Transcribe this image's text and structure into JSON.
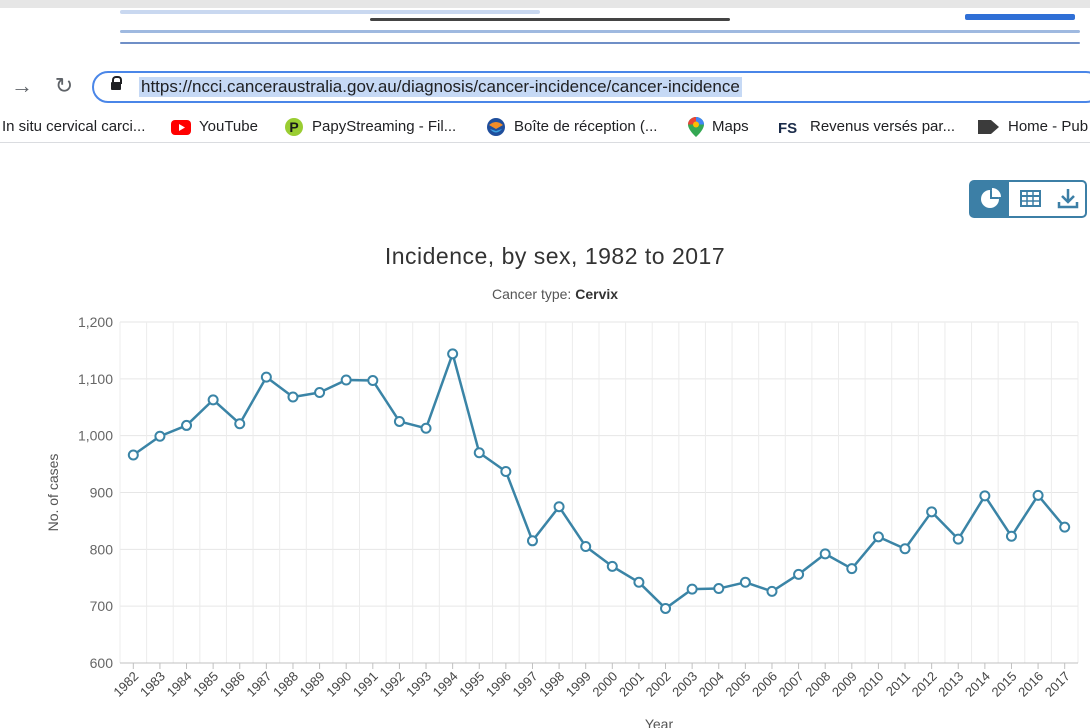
{
  "browser": {
    "url": "https://ncci.canceraustralia.gov.au/diagnosis/cancer-incidence/cancer-incidence",
    "bookmarks": [
      {
        "label": "In situ cervical carci...",
        "icon": "none"
      },
      {
        "label": "YouTube",
        "icon": "youtube-icon"
      },
      {
        "label": "PapyStreaming - Fil...",
        "icon": "papystreaming-icon"
      },
      {
        "label": "Boîte de réception (...",
        "icon": "bouygues-mail-icon"
      },
      {
        "label": "Maps",
        "icon": "maps-pin-icon"
      },
      {
        "label": "Revenus versés par...",
        "icon": "fs-icon"
      },
      {
        "label": "Home - Pub",
        "icon": "arrow-tag-icon"
      }
    ]
  },
  "toolbar": {
    "buttons": [
      {
        "name": "chart-view",
        "icon": "pie-chart-icon",
        "active": true
      },
      {
        "name": "table-view",
        "icon": "table-icon",
        "active": false
      },
      {
        "name": "download",
        "icon": "download-icon",
        "active": false
      }
    ]
  },
  "colors": {
    "accent": "#3c7fa6",
    "line": "#3a84a6",
    "url_highlight": "#c6d9f5"
  },
  "chart_data": {
    "type": "line",
    "title": "Incidence, by sex, 1982 to 2017",
    "subtitle_label": "Cancer type:",
    "subtitle_value": "Cervix",
    "xlabel": "Year",
    "ylabel": "No. of cases",
    "ylim": [
      600,
      1200
    ],
    "yticks": [
      600,
      700,
      800,
      900,
      1000,
      1100,
      1200
    ],
    "ytick_labels": [
      "600",
      "700",
      "800",
      "900",
      "1,000",
      "1,100",
      "1,200"
    ],
    "grid": true,
    "x": [
      "1982",
      "1983",
      "1984",
      "1985",
      "1986",
      "1987",
      "1988",
      "1989",
      "1990",
      "1991",
      "1992",
      "1993",
      "1994",
      "1995",
      "1996",
      "1997",
      "1998",
      "1999",
      "2000",
      "2001",
      "2002",
      "2003",
      "2004",
      "2005",
      "2006",
      "2007",
      "2008",
      "2009",
      "2010",
      "2011",
      "2012",
      "2013",
      "2014",
      "2015",
      "2016",
      "2017"
    ],
    "series": [
      {
        "values": [
          966,
          999,
          1018,
          1063,
          1021,
          1103,
          1068,
          1076,
          1098,
          1097,
          1025,
          1013,
          1144,
          970,
          937,
          815,
          875,
          805,
          770,
          742,
          696,
          730,
          731,
          742,
          726,
          756,
          792,
          766,
          822,
          801,
          866,
          818,
          894,
          823,
          895,
          839
        ]
      }
    ]
  }
}
